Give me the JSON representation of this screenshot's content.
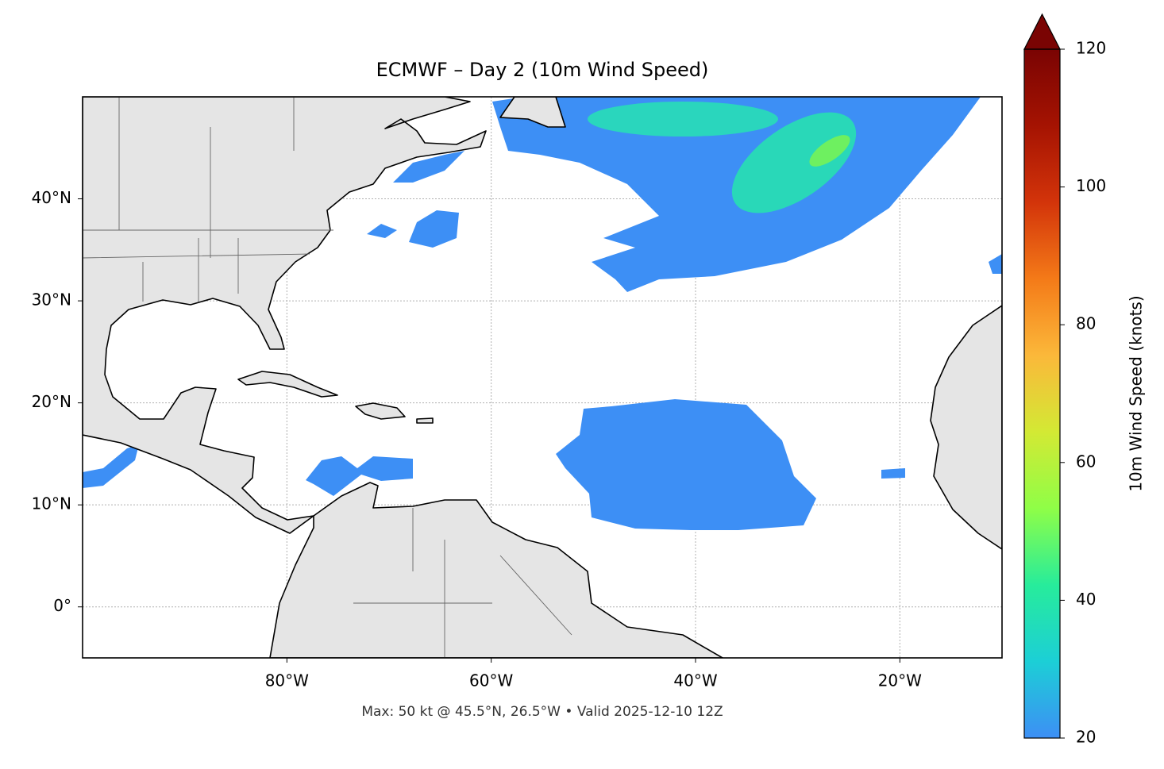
{
  "chart_data": {
    "type": "map",
    "title": "ECMWF – Day 2 (10m Wind Speed)",
    "footnote": "Max: 50 kt @ 45.5°N, 26.5°W • Valid 2025-12-10 12Z",
    "xlim": [
      -100,
      -10
    ],
    "ylim": [
      -5,
      50
    ],
    "xticks": [
      {
        "value": -80,
        "label": "80°W"
      },
      {
        "value": -60,
        "label": "60°W"
      },
      {
        "value": -40,
        "label": "40°W"
      },
      {
        "value": -20,
        "label": "20°W"
      }
    ],
    "yticks": [
      {
        "value": 0,
        "label": "0°"
      },
      {
        "value": 10,
        "label": "10°N"
      },
      {
        "value": 20,
        "label": "20°N"
      },
      {
        "value": 30,
        "label": "30°N"
      },
      {
        "value": 40,
        "label": "40°N"
      }
    ],
    "grid": true,
    "colorbar": {
      "label": "10m Wind Speed (knots)",
      "clim": [
        20,
        120
      ],
      "ticks": [
        20,
        40,
        60,
        80,
        100,
        120
      ],
      "extend": "max",
      "colors": [
        "#3d8ff5",
        "#1ccfd6",
        "#27ec9b",
        "#8ffe47",
        "#d3e934",
        "#fbb83a",
        "#f47a18",
        "#d3340a",
        "#a51302",
        "#7a0403"
      ]
    }
  }
}
